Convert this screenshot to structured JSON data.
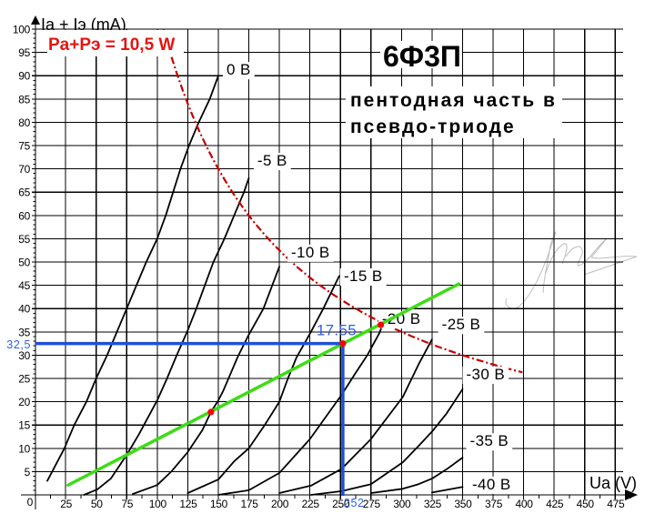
{
  "chart_data": {
    "type": "line",
    "title": "6Ф3П",
    "subtitle": [
      "пентодная часть в",
      "псевдо-триоде"
    ],
    "xlabel": "Ua (V)",
    "ylabel": "Ia + Iэ (mA)",
    "xlim": [
      0,
      475
    ],
    "ylim": [
      0,
      100
    ],
    "origin_label": "0",
    "xticks": [
      25,
      50,
      75,
      100,
      125,
      150,
      175,
      200,
      225,
      250,
      275,
      300,
      325,
      350,
      375,
      400,
      425,
      450,
      475
    ],
    "yticks": [
      5,
      10,
      15,
      20,
      25,
      30,
      35,
      40,
      45,
      50,
      55,
      60,
      65,
      70,
      75,
      80,
      85,
      90,
      95,
      100
    ],
    "grid": true,
    "legend": null,
    "series": [
      {
        "name": "0 В",
        "ug1": 0,
        "label_at": [
          156.7,
          90.2
        ],
        "points": [
          [
            10,
            3
          ],
          [
            24,
            10
          ],
          [
            32,
            15
          ],
          [
            42,
            20
          ],
          [
            50,
            25
          ],
          [
            59,
            30
          ],
          [
            67,
            35
          ],
          [
            75,
            40
          ],
          [
            83,
            45
          ],
          [
            91,
            50
          ],
          [
            100,
            55
          ],
          [
            107,
            60
          ],
          [
            113,
            65
          ],
          [
            119,
            70
          ],
          [
            126,
            75
          ],
          [
            134,
            80
          ],
          [
            143,
            85
          ],
          [
            150,
            90
          ]
        ]
      },
      {
        "name": "-5 В",
        "ug1": -5,
        "label_at": [
          182,
          70.7
        ],
        "points": [
          [
            40,
            0
          ],
          [
            51,
            1.2
          ],
          [
            62,
            3.5
          ],
          [
            75,
            8.6
          ],
          [
            85,
            13
          ],
          [
            100,
            20.3
          ],
          [
            108,
            25
          ],
          [
            116,
            30
          ],
          [
            124.5,
            35
          ],
          [
            132,
            40
          ],
          [
            139,
            45
          ],
          [
            146,
            50
          ],
          [
            155,
            55
          ],
          [
            163,
            60
          ],
          [
            171,
            65
          ],
          [
            175,
            68
          ]
        ]
      },
      {
        "name": "-10 В",
        "ug1": -10,
        "label_at": [
          209.6,
          51
        ],
        "points": [
          [
            80,
            0.2
          ],
          [
            100,
            2.1
          ],
          [
            111.5,
            5
          ],
          [
            125,
            9.2
          ],
          [
            137,
            13.9
          ],
          [
            144,
            17.8
          ],
          [
            150,
            20.3
          ],
          [
            154,
            22.3
          ],
          [
            166,
            29.7
          ],
          [
            175,
            34.4
          ],
          [
            187,
            40
          ],
          [
            200,
            49
          ]
        ]
      },
      {
        "name": "-15 В",
        "ug1": -15,
        "label_at": [
          252.8,
          45.9
        ],
        "points": [
          [
            125,
            0.4
          ],
          [
            150,
            3.3
          ],
          [
            163,
            7.2
          ],
          [
            175,
            10
          ],
          [
            188,
            15
          ],
          [
            200,
            20
          ],
          [
            207,
            25
          ],
          [
            214,
            29.5
          ],
          [
            225,
            34.6
          ],
          [
            236,
            40
          ],
          [
            249,
            47
          ]
        ]
      },
      {
        "name": "-20 В",
        "ug1": -20,
        "label_at": [
          284,
          36.7
        ],
        "points": [
          [
            150,
            0
          ],
          [
            175,
            1
          ],
          [
            200,
            4.7
          ],
          [
            225,
            12
          ],
          [
            251,
            21.5
          ],
          [
            262,
            26
          ],
          [
            272,
            30
          ],
          [
            282,
            34.8
          ],
          [
            288,
            39
          ]
        ]
      },
      {
        "name": "-25 В",
        "ug1": -25,
        "label_at": [
          333,
          35.5
        ],
        "points": [
          [
            200,
            0.4
          ],
          [
            226,
            2
          ],
          [
            251,
            5.6
          ],
          [
            275,
            12
          ],
          [
            301,
            21
          ],
          [
            314,
            28
          ],
          [
            325,
            33.4
          ]
        ]
      },
      {
        "name": "-30 В",
        "ug1": -30,
        "label_at": [
          353,
          24.8
        ],
        "points": [
          [
            226,
            0
          ],
          [
            251,
            0.8
          ],
          [
            275,
            2.3
          ],
          [
            301,
            7
          ],
          [
            314,
            10.5
          ],
          [
            325,
            13.6
          ],
          [
            337,
            17.5
          ],
          [
            350,
            22.7
          ]
        ]
      },
      {
        "name": "-35 В",
        "ug1": -35,
        "label_at": [
          356,
          10.5
        ],
        "points": [
          [
            275,
            0.4
          ],
          [
            301,
            1.3
          ],
          [
            314,
            2.3
          ],
          [
            325,
            3.5
          ],
          [
            337,
            5.5
          ],
          [
            350,
            8
          ]
        ]
      },
      {
        "name": "-40 В",
        "ug1": -40,
        "label_at": [
          357.8,
          1.2
        ],
        "points": [
          [
            325,
            0.5
          ],
          [
            350,
            1.7
          ]
        ]
      }
    ],
    "power_limit": {
      "label": "Pa+Pэ = 10,5 W",
      "watts": 10.5,
      "v_from": 105,
      "v_to": 400,
      "color": "#c40000"
    },
    "load_line": {
      "from": [
        27,
        2.1
      ],
      "to": [
        347,
        45.3
      ],
      "color": "#3ddc16"
    },
    "operating_point": {
      "ua": 252,
      "ia": 32.5,
      "ua_label": "252",
      "ia_label": "32,5",
      "annotation": "17.55",
      "color": "#1e4fd8",
      "label_color": "#3060e0"
    },
    "marked_points": {
      "color": "#ff0000",
      "points": [
        [
          144,
          17.8
        ],
        [
          252,
          32.5
        ],
        [
          283,
          36.5
        ]
      ]
    }
  }
}
